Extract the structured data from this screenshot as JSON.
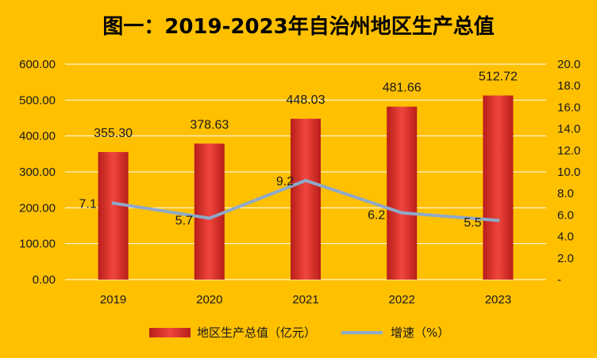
{
  "chart_data": {
    "type": "bar",
    "title": "图一：2019-2023年自治州地区生产总值",
    "categories": [
      "2019",
      "2020",
      "2021",
      "2022",
      "2023"
    ],
    "series": [
      {
        "name": "地区生产总值（亿元）",
        "type": "bar",
        "axis": "left",
        "values": [
          355.3,
          378.63,
          448.03,
          481.66,
          512.72
        ],
        "labels": [
          "355.30",
          "378.63",
          "448.03",
          "481.66",
          "512.72"
        ],
        "color": "#e8322c"
      },
      {
        "name": "增速（%）",
        "type": "line",
        "axis": "right",
        "values": [
          7.1,
          5.7,
          9.2,
          6.2,
          5.5
        ],
        "labels": [
          "7.1",
          "5.7",
          "9.2",
          "6.2",
          "5.5"
        ],
        "color": "#8ea9c9"
      }
    ],
    "y_left": {
      "ylim": [
        0,
        600
      ],
      "ticks": [
        0,
        100,
        200,
        300,
        400,
        500,
        600
      ],
      "tick_labels": [
        "0.00",
        "100.00",
        "200.00",
        "300.00",
        "400.00",
        "500.00",
        "600.00"
      ]
    },
    "y_right": {
      "ylim": [
        0,
        20
      ],
      "ticks": [
        0,
        2,
        4,
        6,
        8,
        10,
        12,
        14,
        16,
        18,
        20
      ],
      "tick_labels": [
        "-",
        "2.0",
        "4.0",
        "6.0",
        "8.0",
        "10.0",
        "12.0",
        "14.0",
        "16.0",
        "18.0",
        "20.0"
      ]
    },
    "grid": true,
    "legend": "bottom",
    "colors": {
      "background": "#ffc000",
      "gridline": "#ffffff",
      "bar": "#e8322c",
      "line": "#8ea9c9"
    }
  }
}
